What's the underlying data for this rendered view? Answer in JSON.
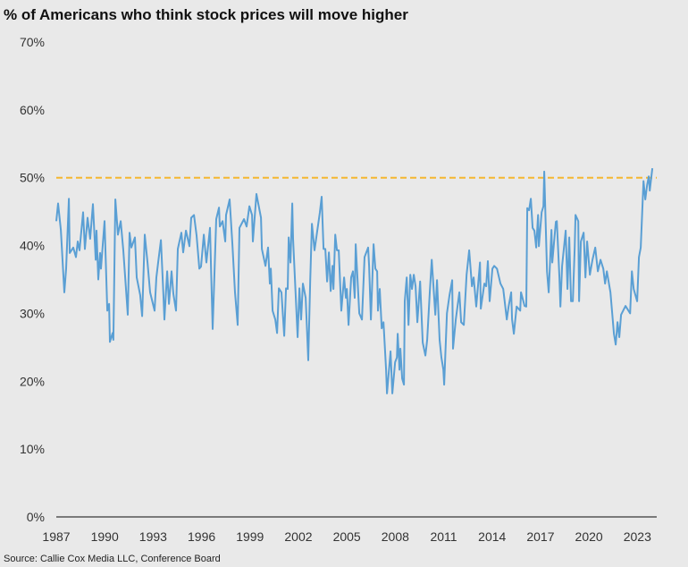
{
  "chart_data": {
    "type": "line",
    "title": "% of Americans who think stock prices will move higher",
    "source": "Source: Callie Cox Media LLC, Conference Board",
    "xlabel": "",
    "ylabel": "",
    "xlim": [
      1987,
      2024.2
    ],
    "ylim": [
      0,
      70
    ],
    "y_ticks": [
      0,
      10,
      20,
      30,
      40,
      50,
      60,
      70
    ],
    "y_tick_labels": [
      "0%",
      "10%",
      "20%",
      "30%",
      "40%",
      "50%",
      "60%",
      "70%"
    ],
    "x_ticks": [
      1987,
      1990,
      1993,
      1996,
      1999,
      2002,
      2005,
      2008,
      2011,
      2014,
      2017,
      2020,
      2023
    ],
    "x_tick_labels": [
      "1987",
      "1990",
      "1993",
      "1996",
      "1999",
      "2002",
      "2005",
      "2008",
      "2011",
      "2014",
      "2017",
      "2020",
      "2023"
    ],
    "grid": false,
    "reference_line": {
      "y": 50,
      "style": "dashed",
      "color": "#f5b731"
    },
    "line_color": "#5a9fd4",
    "series": [
      {
        "points": [
          [
            1987.0,
            43.6
          ],
          [
            1987.11,
            46.2
          ],
          [
            1987.28,
            42.3
          ],
          [
            1987.5,
            33.1
          ],
          [
            1987.61,
            36.6
          ],
          [
            1987.78,
            46.9
          ],
          [
            1987.83,
            38.9
          ],
          [
            1988.05,
            39.7
          ],
          [
            1988.22,
            38.3
          ],
          [
            1988.33,
            40.6
          ],
          [
            1988.44,
            39.3
          ],
          [
            1988.66,
            44.9
          ],
          [
            1988.77,
            39.5
          ],
          [
            1988.94,
            44.1
          ],
          [
            1989.1,
            41.0
          ],
          [
            1989.27,
            46.1
          ],
          [
            1989.44,
            37.9
          ],
          [
            1989.49,
            42.2
          ],
          [
            1989.6,
            35.0
          ],
          [
            1989.71,
            38.9
          ],
          [
            1989.77,
            36.6
          ],
          [
            1989.99,
            43.6
          ],
          [
            1990.16,
            30.4
          ],
          [
            1990.27,
            31.4
          ],
          [
            1990.32,
            25.8
          ],
          [
            1990.49,
            27.1
          ],
          [
            1990.54,
            26.1
          ],
          [
            1990.66,
            46.8
          ],
          [
            1990.82,
            41.6
          ],
          [
            1990.99,
            43.6
          ],
          [
            1991.15,
            39.3
          ],
          [
            1991.43,
            29.8
          ],
          [
            1991.54,
            41.9
          ],
          [
            1991.65,
            39.7
          ],
          [
            1991.87,
            41.2
          ],
          [
            1991.98,
            35.3
          ],
          [
            1992.2,
            32.7
          ],
          [
            1992.32,
            29.6
          ],
          [
            1992.48,
            41.6
          ],
          [
            1992.65,
            37.5
          ],
          [
            1992.81,
            33.1
          ],
          [
            1993.09,
            30.4
          ],
          [
            1993.2,
            35.3
          ],
          [
            1993.31,
            37.5
          ],
          [
            1993.48,
            40.8
          ],
          [
            1993.64,
            32.7
          ],
          [
            1993.7,
            29.1
          ],
          [
            1993.87,
            36.2
          ],
          [
            1993.98,
            31.4
          ],
          [
            1994.14,
            36.2
          ],
          [
            1994.25,
            32.9
          ],
          [
            1994.42,
            30.4
          ],
          [
            1994.53,
            39.5
          ],
          [
            1994.75,
            41.9
          ],
          [
            1994.86,
            39.0
          ],
          [
            1995.03,
            42.2
          ],
          [
            1995.25,
            39.9
          ],
          [
            1995.36,
            44.1
          ],
          [
            1995.53,
            44.5
          ],
          [
            1995.69,
            41.5
          ],
          [
            1995.86,
            36.6
          ],
          [
            1995.97,
            36.9
          ],
          [
            1996.14,
            41.6
          ],
          [
            1996.3,
            37.5
          ],
          [
            1996.52,
            42.6
          ],
          [
            1996.69,
            27.7
          ],
          [
            1996.91,
            43.9
          ],
          [
            1997.08,
            45.6
          ],
          [
            1997.13,
            42.8
          ],
          [
            1997.3,
            43.6
          ],
          [
            1997.47,
            40.6
          ],
          [
            1997.52,
            44.5
          ],
          [
            1997.74,
            46.8
          ],
          [
            1997.91,
            40.2
          ],
          [
            1998.07,
            33.1
          ],
          [
            1998.24,
            28.3
          ],
          [
            1998.35,
            42.6
          ],
          [
            1998.63,
            43.9
          ],
          [
            1998.79,
            42.8
          ],
          [
            1998.96,
            45.8
          ],
          [
            1999.13,
            44.5
          ],
          [
            1999.18,
            40.6
          ],
          [
            1999.4,
            47.6
          ],
          [
            1999.68,
            44.1
          ],
          [
            1999.74,
            39.5
          ],
          [
            1999.96,
            37.0
          ],
          [
            2000.12,
            39.7
          ],
          [
            2000.23,
            34.4
          ],
          [
            2000.29,
            36.6
          ],
          [
            2000.4,
            30.4
          ],
          [
            2000.57,
            29.1
          ],
          [
            2000.68,
            27.1
          ],
          [
            2000.79,
            33.7
          ],
          [
            2000.95,
            33.1
          ],
          [
            2001.12,
            26.7
          ],
          [
            2001.23,
            33.7
          ],
          [
            2001.34,
            33.6
          ],
          [
            2001.4,
            41.2
          ],
          [
            2001.51,
            37.5
          ],
          [
            2001.62,
            46.2
          ],
          [
            2001.67,
            41.0
          ],
          [
            2001.95,
            26.5
          ],
          [
            2002.06,
            33.7
          ],
          [
            2002.17,
            29.1
          ],
          [
            2002.28,
            34.4
          ],
          [
            2002.45,
            32.3
          ],
          [
            2002.61,
            23.1
          ],
          [
            2002.73,
            34.9
          ],
          [
            2002.84,
            43.2
          ],
          [
            2003.0,
            39.3
          ],
          [
            2003.17,
            42.2
          ],
          [
            2003.33,
            44.9
          ],
          [
            2003.44,
            47.2
          ],
          [
            2003.56,
            39.5
          ],
          [
            2003.67,
            39.5
          ],
          [
            2003.78,
            34.7
          ],
          [
            2003.89,
            39.0
          ],
          [
            2004.0,
            33.3
          ],
          [
            2004.11,
            37.0
          ],
          [
            2004.17,
            33.6
          ],
          [
            2004.28,
            41.6
          ],
          [
            2004.39,
            39.3
          ],
          [
            2004.5,
            39.3
          ],
          [
            2004.66,
            30.4
          ],
          [
            2004.83,
            35.3
          ],
          [
            2004.94,
            32.3
          ],
          [
            2005.0,
            33.6
          ],
          [
            2005.11,
            28.3
          ],
          [
            2005.27,
            35.3
          ],
          [
            2005.38,
            36.2
          ],
          [
            2005.49,
            32.3
          ],
          [
            2005.55,
            40.2
          ],
          [
            2005.77,
            30.0
          ],
          [
            2005.94,
            29.1
          ],
          [
            2006.1,
            38.3
          ],
          [
            2006.32,
            39.7
          ],
          [
            2006.38,
            37.0
          ],
          [
            2006.49,
            29.1
          ],
          [
            2006.66,
            40.2
          ],
          [
            2006.77,
            36.6
          ],
          [
            2006.88,
            36.2
          ],
          [
            2006.93,
            30.4
          ],
          [
            2007.04,
            33.6
          ],
          [
            2007.16,
            27.8
          ],
          [
            2007.27,
            28.7
          ],
          [
            2007.43,
            21.7
          ],
          [
            2007.49,
            18.2
          ],
          [
            2007.71,
            24.4
          ],
          [
            2007.82,
            18.2
          ],
          [
            2007.99,
            22.8
          ],
          [
            2008.1,
            23.5
          ],
          [
            2008.15,
            27.0
          ],
          [
            2008.26,
            21.7
          ],
          [
            2008.32,
            24.8
          ],
          [
            2008.43,
            20.4
          ],
          [
            2008.54,
            19.5
          ],
          [
            2008.59,
            31.8
          ],
          [
            2008.71,
            35.3
          ],
          [
            2008.82,
            28.3
          ],
          [
            2008.93,
            35.7
          ],
          [
            2009.04,
            33.6
          ],
          [
            2009.15,
            35.7
          ],
          [
            2009.26,
            34.0
          ],
          [
            2009.37,
            28.7
          ],
          [
            2009.54,
            34.7
          ],
          [
            2009.7,
            25.7
          ],
          [
            2009.87,
            23.8
          ],
          [
            2009.98,
            26.1
          ],
          [
            2010.14,
            33.1
          ],
          [
            2010.26,
            37.9
          ],
          [
            2010.48,
            29.8
          ],
          [
            2010.59,
            34.9
          ],
          [
            2010.75,
            26.1
          ],
          [
            2010.86,
            23.5
          ],
          [
            2010.98,
            21.7
          ],
          [
            2011.03,
            19.5
          ],
          [
            2011.2,
            30.0
          ],
          [
            2011.36,
            32.7
          ],
          [
            2011.53,
            34.9
          ],
          [
            2011.58,
            24.8
          ],
          [
            2011.75,
            29.1
          ],
          [
            2011.97,
            33.1
          ],
          [
            2012.08,
            28.7
          ],
          [
            2012.25,
            28.3
          ],
          [
            2012.42,
            35.7
          ],
          [
            2012.58,
            39.3
          ],
          [
            2012.75,
            34.0
          ],
          [
            2012.86,
            35.3
          ],
          [
            2013.02,
            31.0
          ],
          [
            2013.25,
            37.5
          ],
          [
            2013.3,
            30.7
          ],
          [
            2013.52,
            34.4
          ],
          [
            2013.63,
            34.0
          ],
          [
            2013.74,
            37.7
          ],
          [
            2013.85,
            31.8
          ],
          [
            2014.02,
            36.6
          ],
          [
            2014.13,
            37.0
          ],
          [
            2014.3,
            36.6
          ],
          [
            2014.52,
            34.4
          ],
          [
            2014.69,
            33.6
          ],
          [
            2014.91,
            29.1
          ],
          [
            2015.02,
            31.0
          ],
          [
            2015.18,
            33.1
          ],
          [
            2015.24,
            29.1
          ],
          [
            2015.35,
            27.0
          ],
          [
            2015.52,
            31.0
          ],
          [
            2015.74,
            30.4
          ],
          [
            2015.79,
            33.1
          ],
          [
            2016.01,
            31.1
          ],
          [
            2016.12,
            31.0
          ],
          [
            2016.18,
            45.5
          ],
          [
            2016.29,
            45.2
          ],
          [
            2016.4,
            46.9
          ],
          [
            2016.51,
            42.6
          ],
          [
            2016.62,
            42.2
          ],
          [
            2016.73,
            39.7
          ],
          [
            2016.85,
            44.5
          ],
          [
            2016.9,
            39.9
          ],
          [
            2017.07,
            44.9
          ],
          [
            2017.18,
            45.8
          ],
          [
            2017.23,
            50.9
          ],
          [
            2017.4,
            36.2
          ],
          [
            2017.51,
            33.1
          ],
          [
            2017.68,
            42.3
          ],
          [
            2017.73,
            37.5
          ],
          [
            2017.95,
            43.5
          ],
          [
            2018.01,
            43.6
          ],
          [
            2018.17,
            35.3
          ],
          [
            2018.23,
            31.0
          ],
          [
            2018.34,
            37.0
          ],
          [
            2018.56,
            42.2
          ],
          [
            2018.67,
            33.6
          ],
          [
            2018.78,
            41.2
          ],
          [
            2018.89,
            31.8
          ],
          [
            2019.0,
            31.8
          ],
          [
            2019.12,
            39.7
          ],
          [
            2019.17,
            44.5
          ],
          [
            2019.34,
            43.6
          ],
          [
            2019.39,
            31.8
          ],
          [
            2019.5,
            40.6
          ],
          [
            2019.67,
            41.9
          ],
          [
            2019.78,
            35.3
          ],
          [
            2019.89,
            40.6
          ],
          [
            2020.06,
            35.7
          ],
          [
            2020.22,
            37.9
          ],
          [
            2020.39,
            39.7
          ],
          [
            2020.55,
            36.2
          ],
          [
            2020.72,
            37.9
          ],
          [
            2020.89,
            36.6
          ],
          [
            2021.0,
            34.4
          ],
          [
            2021.11,
            36.2
          ],
          [
            2021.33,
            33.1
          ],
          [
            2021.55,
            27.0
          ],
          [
            2021.66,
            25.4
          ],
          [
            2021.77,
            28.7
          ],
          [
            2021.88,
            26.5
          ],
          [
            2021.99,
            29.8
          ],
          [
            2022.27,
            31.1
          ],
          [
            2022.55,
            30.0
          ],
          [
            2022.66,
            36.2
          ],
          [
            2022.77,
            33.6
          ],
          [
            2022.99,
            31.8
          ],
          [
            2023.1,
            38.3
          ],
          [
            2023.21,
            39.7
          ],
          [
            2023.38,
            49.5
          ],
          [
            2023.49,
            46.8
          ],
          [
            2023.6,
            48.9
          ],
          [
            2023.71,
            50.2
          ],
          [
            2023.77,
            48.1
          ],
          [
            2023.93,
            51.4
          ]
        ]
      }
    ]
  }
}
